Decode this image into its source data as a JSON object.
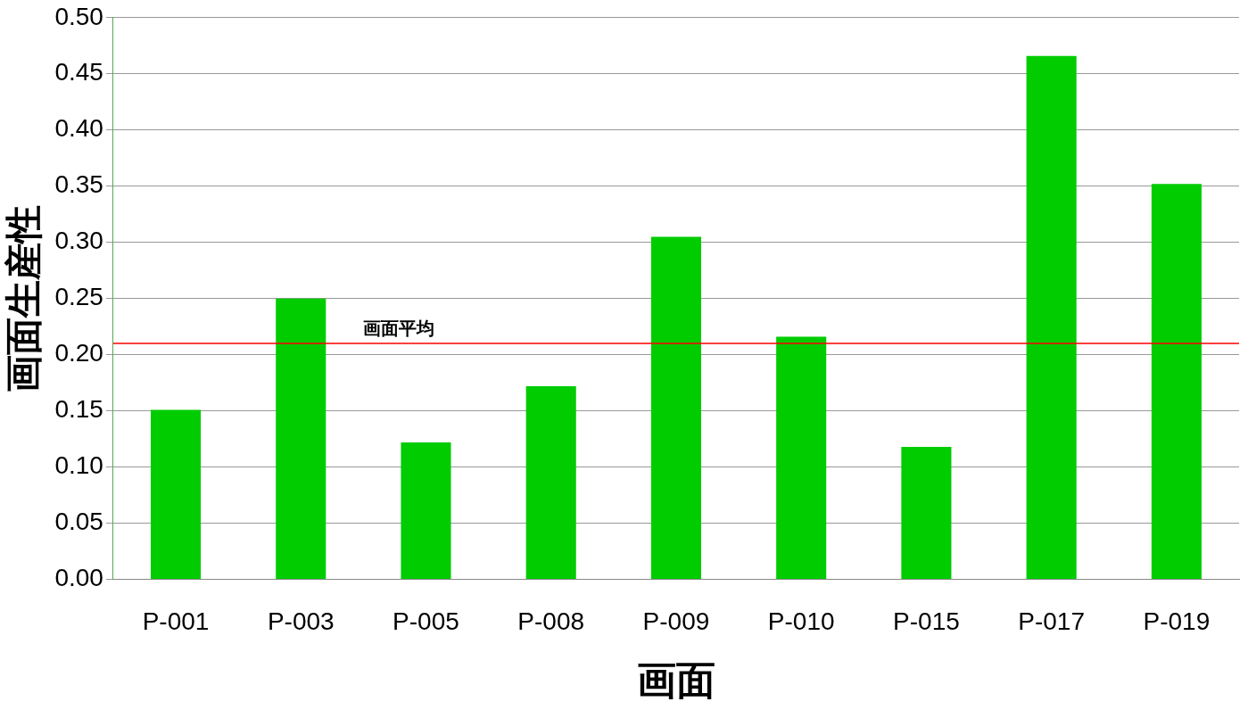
{
  "chart_data": {
    "type": "bar",
    "xlabel": "画面",
    "ylabel": "画面生産性",
    "categories": [
      "P-001",
      "P-003",
      "P-005",
      "P-008",
      "P-009",
      "P-010",
      "P-015",
      "P-017",
      "P-019"
    ],
    "values": [
      0.151,
      0.25,
      0.122,
      0.172,
      0.305,
      0.216,
      0.118,
      0.466,
      0.352
    ],
    "color": "#00cc00",
    "ylim": [
      0,
      0.5
    ],
    "yticks": [
      {
        "value": 0,
        "label": "0.00"
      },
      {
        "value": 0.05,
        "label": "0.05"
      },
      {
        "value": 0.1,
        "label": "0.10"
      },
      {
        "value": 0.15,
        "label": "0.15"
      },
      {
        "value": 0.2,
        "label": "0.20"
      },
      {
        "value": 0.25,
        "label": "0.25"
      },
      {
        "value": 0.3,
        "label": "0.30"
      },
      {
        "value": 0.35,
        "label": "0.35"
      },
      {
        "value": 0.4,
        "label": "0.40"
      },
      {
        "value": 0.45,
        "label": "0.45"
      },
      {
        "value": 0.5,
        "label": "0.50"
      }
    ],
    "grid": "y",
    "legend": false,
    "ref_lines": [
      {
        "axis": "y",
        "value": 0.21,
        "label": "画面平均",
        "color": "#ff0000"
      }
    ]
  }
}
